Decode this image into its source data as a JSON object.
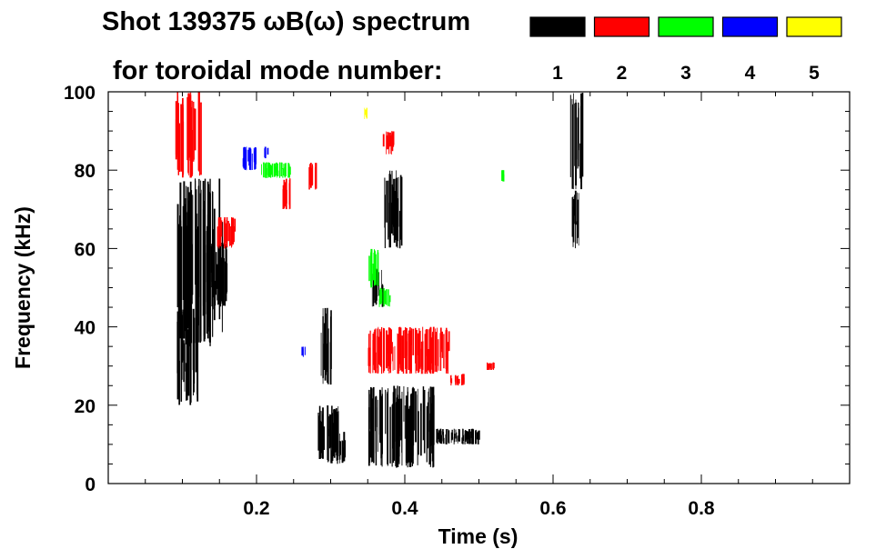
{
  "chart_data": {
    "type": "heatmap",
    "title_line1": "Shot 139375 ωB(ω) spectrum",
    "title_line2": "for toroidal mode number:",
    "xlabel": "Time (s)",
    "ylabel": "Frequency (kHz)",
    "xlim": [
      0.0,
      1.0
    ],
    "ylim": [
      0,
      100
    ],
    "xticks": [
      {
        "value": 0.2,
        "label": "0.2"
      },
      {
        "value": 0.4,
        "label": "0.4"
      },
      {
        "value": 0.6,
        "label": "0.6"
      },
      {
        "value": 0.8,
        "label": "0.8"
      }
    ],
    "yticks": [
      {
        "value": 0,
        "label": "0"
      },
      {
        "value": 20,
        "label": "20"
      },
      {
        "value": 40,
        "label": "40"
      },
      {
        "value": 60,
        "label": "60"
      },
      {
        "value": 80,
        "label": "80"
      },
      {
        "value": 100,
        "label": "100"
      }
    ],
    "legend": [
      {
        "mode": "1",
        "color": "#000000"
      },
      {
        "mode": "2",
        "color": "#ff0000"
      },
      {
        "mode": "3",
        "color": "#00ff00"
      },
      {
        "mode": "4",
        "color": "#0000ff"
      },
      {
        "mode": "5",
        "color": "#ffff00"
      }
    ],
    "series": [
      {
        "mode": "1",
        "regions": [
          {
            "t": [
              0.09,
              0.155
            ],
            "f": [
              35,
              78
            ]
          },
          {
            "t": [
              0.092,
              0.12
            ],
            "f": [
              20,
              45
            ]
          },
          {
            "t": [
              0.13,
              0.16
            ],
            "f": [
              45,
              62
            ]
          },
          {
            "t": [
              0.28,
              0.31
            ],
            "f": [
              6,
              20
            ]
          },
          {
            "t": [
              0.295,
              0.32
            ],
            "f": [
              5,
              14
            ]
          },
          {
            "t": [
              0.35,
              0.44
            ],
            "f": [
              4,
              25
            ]
          },
          {
            "t": [
              0.44,
              0.5
            ],
            "f": [
              10,
              14
            ]
          },
          {
            "t": [
              0.37,
              0.395
            ],
            "f": [
              60,
              80
            ]
          },
          {
            "t": [
              0.355,
              0.37
            ],
            "f": [
              45,
              55
            ]
          },
          {
            "t": [
              0.622,
              0.64
            ],
            "f": [
              75,
              100
            ]
          },
          {
            "t": [
              0.625,
              0.635
            ],
            "f": [
              60,
              75
            ]
          },
          {
            "t": [
              0.285,
              0.3
            ],
            "f": [
              25,
              45
            ]
          }
        ]
      },
      {
        "mode": "2",
        "regions": [
          {
            "t": [
              0.09,
              0.125
            ],
            "f": [
              78,
              100
            ]
          },
          {
            "t": [
              0.145,
              0.17
            ],
            "f": [
              60,
              68
            ]
          },
          {
            "t": [
              0.35,
              0.46
            ],
            "f": [
              28,
              40
            ]
          },
          {
            "t": [
              0.46,
              0.48
            ],
            "f": [
              25,
              28
            ]
          },
          {
            "t": [
              0.51,
              0.52
            ],
            "f": [
              29,
              31
            ]
          },
          {
            "t": [
              0.27,
              0.28
            ],
            "f": [
              75,
              82
            ]
          },
          {
            "t": [
              0.37,
              0.385
            ],
            "f": [
              84,
              90
            ]
          },
          {
            "t": [
              0.235,
              0.245
            ],
            "f": [
              70,
              78
            ]
          }
        ]
      },
      {
        "mode": "3",
        "regions": [
          {
            "t": [
              0.35,
              0.365
            ],
            "f": [
              50,
              60
            ]
          },
          {
            "t": [
              0.365,
              0.38
            ],
            "f": [
              45,
              50
            ]
          },
          {
            "t": [
              0.205,
              0.245
            ],
            "f": [
              78,
              82
            ]
          },
          {
            "t": [
              0.53,
              0.535
            ],
            "f": [
              77,
              80
            ]
          }
        ]
      },
      {
        "mode": "4",
        "regions": [
          {
            "t": [
              0.18,
              0.2
            ],
            "f": [
              80,
              86
            ]
          },
          {
            "t": [
              0.21,
              0.215
            ],
            "f": [
              83,
              86
            ]
          },
          {
            "t": [
              0.26,
              0.265
            ],
            "f": [
              32,
              35
            ]
          }
        ]
      },
      {
        "mode": "5",
        "regions": [
          {
            "t": [
              0.345,
              0.35
            ],
            "f": [
              93,
              96
            ]
          }
        ]
      }
    ]
  }
}
